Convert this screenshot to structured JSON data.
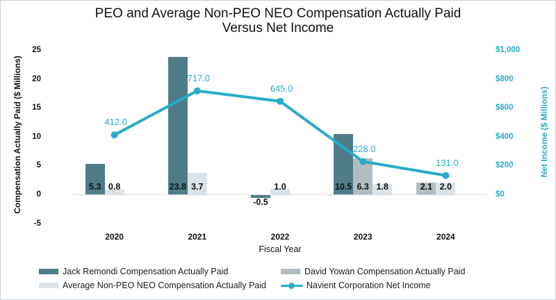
{
  "title": {
    "line1": "PEO and Average Non-PEO NEO Compensation Actually Paid",
    "line2": "Versus Net Income"
  },
  "colors": {
    "jack_bar": "#4e7d88",
    "david_bar": "#b2bdc2",
    "avg_bar": "#dbe3e8",
    "net_income_line": "#29abc8",
    "zero_gridline": "#d9d9d9",
    "label_text": "#111111"
  },
  "chart_data": {
    "type": "combo bar+line",
    "categories": [
      "2020",
      "2021",
      "2022",
      "2023",
      "2024"
    ],
    "series": [
      {
        "name": "Jack Remondi Compensation Actually Paid",
        "type": "bar",
        "color": "#4e7d88",
        "values": [
          5.3,
          23.8,
          -0.5,
          10.5,
          null
        ]
      },
      {
        "name": "David Yowan Compensation Actually Paid",
        "type": "bar",
        "color": "#b2bdc2",
        "values": [
          null,
          null,
          null,
          6.3,
          2.1
        ]
      },
      {
        "name": "Average Non-PEO NEO Compensation Actually Paid",
        "type": "bar",
        "color": "#dbe3e8",
        "values": [
          0.8,
          3.7,
          1.0,
          1.8,
          2.0
        ]
      },
      {
        "name": "Navient Corporation Net Income",
        "type": "line",
        "axis": "right",
        "color": "#29abc8",
        "values": [
          412.0,
          717.0,
          645.0,
          228.0,
          131.0
        ]
      }
    ],
    "left_axis": {
      "title": "Compensation Actually Paid ($ Millions)",
      "min": -5,
      "max": 25,
      "ticks": [
        {
          "label": "25",
          "value": 25
        },
        {
          "label": "20",
          "value": 20
        },
        {
          "label": "15",
          "value": 15
        },
        {
          "label": "10",
          "value": 10
        },
        {
          "label": "5",
          "value": 5
        },
        {
          "label": "0",
          "value": 0
        },
        {
          "label": "-5",
          "value": -5
        }
      ]
    },
    "right_axis": {
      "title": "Net Income ($ Millions)",
      "min": 0,
      "max": 1000,
      "ticks": [
        {
          "label": "$1,000",
          "value": 1000
        },
        {
          "label": "$800",
          "value": 800
        },
        {
          "label": "$600",
          "value": 600
        },
        {
          "label": "$400",
          "value": 400
        },
        {
          "label": "$200",
          "value": 200
        },
        {
          "label": "$0",
          "value": 0
        }
      ]
    },
    "x_axis": {
      "title": "Fiscal Year"
    },
    "grid": "zero-line-only",
    "legend_position": "bottom, 2 columns"
  }
}
